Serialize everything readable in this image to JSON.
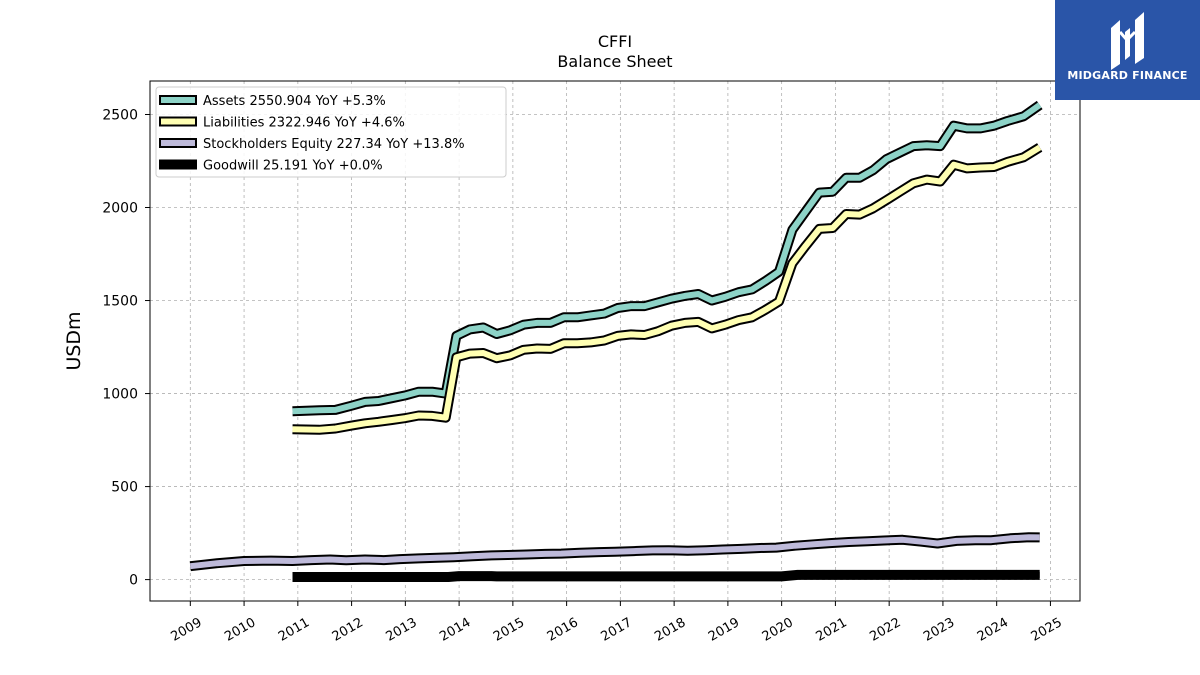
{
  "brand": {
    "name": "MIDGARD FINANCE",
    "logo_icon": "mf-monogram-icon",
    "color": "#2a55a8"
  },
  "chart_data": {
    "type": "line",
    "title": "CFFI",
    "subtitle": "Balance  Sheet",
    "xlabel": "",
    "ylabel": "USDm",
    "xlim": [
      2008.25,
      2025.55
    ],
    "ylim": [
      -115,
      2680
    ],
    "x_ticks": [
      2009,
      2010,
      2011,
      2012,
      2013,
      2014,
      2015,
      2016,
      2017,
      2018,
      2019,
      2020,
      2021,
      2022,
      2023,
      2024,
      2025
    ],
    "y_ticks": [
      0,
      500,
      1000,
      1500,
      2000,
      2500
    ],
    "grid": true,
    "legend_position": "top-left",
    "series": [
      {
        "name": "Assets  2550.904 YoY +5.3%",
        "color": "#8dd3c7",
        "x": [
          2010.9,
          2011.4,
          2011.7,
          2012.0,
          2012.25,
          2012.5,
          2012.75,
          2013.0,
          2013.25,
          2013.5,
          2013.75,
          2013.95,
          2014.2,
          2014.45,
          2014.7,
          2014.95,
          2015.2,
          2015.45,
          2015.7,
          2015.95,
          2016.2,
          2016.45,
          2016.7,
          2016.95,
          2017.2,
          2017.45,
          2017.7,
          2017.95,
          2018.2,
          2018.45,
          2018.7,
          2018.95,
          2019.2,
          2019.45,
          2019.7,
          2019.95,
          2020.2,
          2020.45,
          2020.7,
          2020.95,
          2021.2,
          2021.45,
          2021.7,
          2021.95,
          2022.2,
          2022.45,
          2022.7,
          2022.95,
          2023.2,
          2023.45,
          2023.7,
          2023.95,
          2024.2,
          2024.5,
          2024.8
        ],
        "y": [
          905,
          910,
          912,
          935,
          955,
          960,
          975,
          990,
          1010,
          1010,
          1000,
          1310,
          1345,
          1355,
          1320,
          1340,
          1370,
          1380,
          1380,
          1410,
          1410,
          1420,
          1430,
          1460,
          1470,
          1470,
          1490,
          1510,
          1525,
          1535,
          1500,
          1520,
          1545,
          1560,
          1605,
          1655,
          1880,
          1980,
          2080,
          2085,
          2160,
          2160,
          2200,
          2260,
          2295,
          2330,
          2335,
          2330,
          2440,
          2425,
          2425,
          2440,
          2465,
          2490,
          2551
        ]
      },
      {
        "name": "Liabilities  2322.946 YoY +4.6%",
        "color": "#ffffb3",
        "x": [
          2010.9,
          2011.4,
          2011.7,
          2012.0,
          2012.25,
          2012.5,
          2012.75,
          2013.0,
          2013.25,
          2013.5,
          2013.75,
          2013.95,
          2014.2,
          2014.45,
          2014.7,
          2014.95,
          2015.2,
          2015.45,
          2015.7,
          2015.95,
          2016.2,
          2016.45,
          2016.7,
          2016.95,
          2017.2,
          2017.45,
          2017.7,
          2017.95,
          2018.2,
          2018.45,
          2018.7,
          2018.95,
          2019.2,
          2019.45,
          2019.7,
          2019.95,
          2020.2,
          2020.45,
          2020.7,
          2020.95,
          2021.2,
          2021.45,
          2021.7,
          2021.95,
          2022.2,
          2022.45,
          2022.7,
          2022.95,
          2023.2,
          2023.45,
          2023.7,
          2023.95,
          2024.2,
          2024.5,
          2024.8
        ],
        "y": [
          808,
          805,
          812,
          828,
          840,
          848,
          858,
          868,
          882,
          880,
          870,
          1195,
          1215,
          1218,
          1190,
          1205,
          1235,
          1242,
          1240,
          1270,
          1270,
          1275,
          1285,
          1310,
          1318,
          1315,
          1335,
          1365,
          1380,
          1385,
          1350,
          1370,
          1395,
          1410,
          1450,
          1495,
          1700,
          1795,
          1885,
          1890,
          1965,
          1962,
          1995,
          2040,
          2085,
          2130,
          2150,
          2140,
          2230,
          2210,
          2215,
          2218,
          2245,
          2270,
          2323
        ]
      },
      {
        "name": "Stockholders Equity  227.34 YoY +13.8%",
        "color": "#bebada",
        "x": [
          2009.0,
          2009.5,
          2010.0,
          2010.5,
          2010.9,
          2011.25,
          2011.6,
          2011.9,
          2012.25,
          2012.6,
          2012.9,
          2013.25,
          2013.6,
          2013.9,
          2014.25,
          2014.6,
          2014.9,
          2015.25,
          2015.6,
          2015.9,
          2016.25,
          2016.6,
          2016.9,
          2017.25,
          2017.6,
          2017.9,
          2018.25,
          2018.6,
          2018.9,
          2019.25,
          2019.6,
          2019.9,
          2020.25,
          2020.6,
          2020.9,
          2021.25,
          2021.6,
          2021.9,
          2022.25,
          2022.6,
          2022.9,
          2023.25,
          2023.6,
          2023.9,
          2024.25,
          2024.6,
          2024.8
        ],
        "y": [
          72,
          88,
          100,
          102,
          100,
          105,
          108,
          104,
          108,
          105,
          110,
          114,
          117,
          120,
          125,
          130,
          132,
          135,
          138,
          140,
          144,
          148,
          150,
          153,
          157,
          158,
          155,
          158,
          162,
          165,
          170,
          172,
          182,
          190,
          196,
          202,
          206,
          210,
          214,
          204,
          194,
          208,
          212,
          212,
          222,
          228,
          227
        ]
      },
      {
        "name": "Goodwill  25.191 YoY +0.0%",
        "color": "#000000",
        "x": [
          2010.9,
          2013.8,
          2014.0,
          2014.6,
          2014.7,
          2020.0,
          2020.3,
          2024.8
        ],
        "y": [
          14,
          14,
          19,
          19,
          17,
          17,
          25.2,
          25.2
        ]
      }
    ]
  }
}
